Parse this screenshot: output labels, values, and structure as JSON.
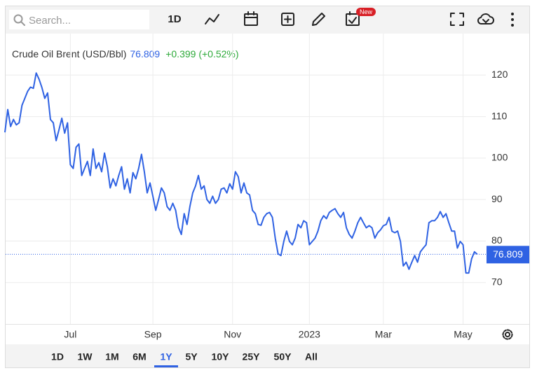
{
  "toolbar": {
    "search_placeholder": "Search...",
    "interval": "1D",
    "badge": "New"
  },
  "chart_data": {
    "type": "line",
    "title": "Crude Oil Brent (USD/Bbl)",
    "change": "+0.399 (+0.52%)",
    "series": [
      {
        "name": "Crude Oil Brent",
        "color": "#2f62e3",
        "values": [
          106.2,
          111.7,
          107.6,
          109.3,
          108,
          108.5,
          112.7,
          114.4,
          116.1,
          117.1,
          116.8,
          120.5,
          119,
          117,
          114.4,
          115.7,
          109.3,
          108.5,
          104.2,
          106.8,
          109.6,
          106,
          108.5,
          98.4,
          97.5,
          102.6,
          103.4,
          95.8,
          97.5,
          99.2,
          95.8,
          102.2,
          97.5,
          98.9,
          96.7,
          101.2,
          97.9,
          92.8,
          95,
          93.3,
          95.8,
          97.9,
          92.5,
          95,
          91.6,
          96.5,
          95,
          97.5,
          100.9,
          96.7,
          91.6,
          94,
          90.8,
          87.4,
          90,
          92.8,
          91.6,
          88.3,
          87.4,
          89.1,
          87.4,
          83.3,
          81.6,
          86.6,
          84,
          88.3,
          91.6,
          93.3,
          95.8,
          92.5,
          93.3,
          90,
          89.1,
          90.8,
          89.1,
          90,
          92.5,
          92.8,
          91.6,
          93.8,
          92.5,
          96.7,
          95.5,
          91.6,
          94,
          91.6,
          91.1,
          87.4,
          86.6,
          84,
          83.8,
          85.7,
          86.6,
          86.9,
          85.7,
          80.7,
          76.9,
          76.5,
          79.9,
          82.4,
          79.9,
          79.1,
          80.7,
          84,
          83.2,
          84.9,
          84.4,
          79.1,
          79.9,
          80.7,
          82.4,
          84.9,
          86.1,
          85.4,
          86.9,
          87.4,
          87.8,
          86.6,
          85.7,
          86.9,
          83.2,
          81.6,
          80.7,
          82.4,
          84.4,
          85.7,
          84.4,
          83.2,
          83.7,
          83.2,
          80.7,
          82,
          82.7,
          83.7,
          84,
          85.7,
          82.4,
          82,
          82.4,
          79.9,
          74,
          74.9,
          73.2,
          74.9,
          76.5,
          74.9,
          77.4,
          78.3,
          79.1,
          84.4,
          84.9,
          84.9,
          85.7,
          87.1,
          85.7,
          86.6,
          84.4,
          82.4,
          82.4,
          78.3,
          79.9,
          79.1,
          72.3,
          72.3,
          75.7,
          77.4,
          76.809
        ]
      }
    ],
    "xlim": [
      0,
      169
    ],
    "xticks": [
      {
        "value": 23,
        "label": "Jul"
      },
      {
        "value": 52,
        "label": "Sep"
      },
      {
        "value": 80,
        "label": "Nov"
      },
      {
        "value": 107,
        "label": "2023"
      },
      {
        "value": 133,
        "label": "Mar"
      },
      {
        "value": 161,
        "label": "May"
      }
    ],
    "ylim": [
      60,
      130
    ],
    "yticks": [
      70,
      80,
      90,
      100,
      110,
      120
    ],
    "grid": true
  },
  "ranges": {
    "options": [
      "1D",
      "1W",
      "1M",
      "6M",
      "1Y",
      "5Y",
      "10Y",
      "25Y",
      "50Y",
      "All"
    ],
    "selected": 4
  }
}
